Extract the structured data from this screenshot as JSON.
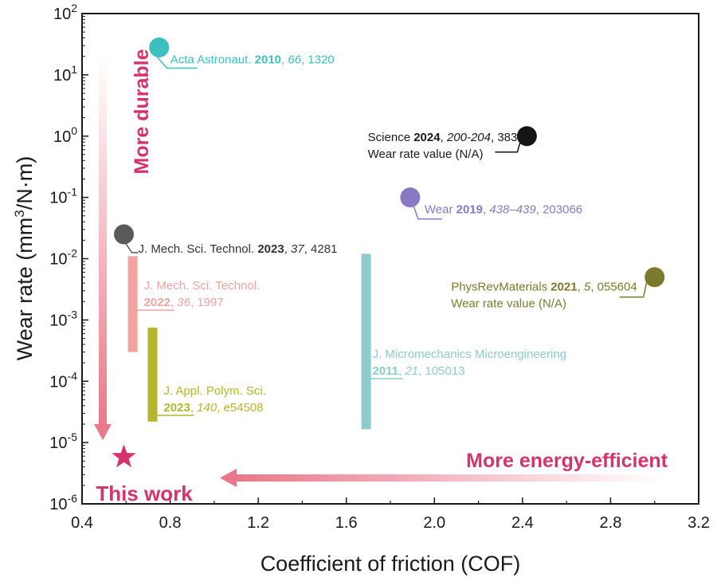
{
  "chart_data": {
    "type": "scatter",
    "xlabel": "Coefficient of friction (COF)",
    "ylabel_prefix": "Wear rate (mm",
    "ylabel_sup": "3",
    "ylabel_suffix": "/N·m)",
    "xlim": [
      0.4,
      3.2
    ],
    "ylim": [
      1e-06,
      100
    ],
    "yscale": "log",
    "x_ticks": [
      "0.4",
      "0.8",
      "1.2",
      "1.6",
      "2.0",
      "2.4",
      "2.8",
      "3.2"
    ],
    "y_ticks": [
      {
        "base": "10",
        "exp": "2"
      },
      {
        "base": "10",
        "exp": "1"
      },
      {
        "base": "10",
        "exp": "0"
      },
      {
        "base": "10",
        "exp": "-1"
      },
      {
        "base": "10",
        "exp": "-2"
      },
      {
        "base": "10",
        "exp": "-3"
      },
      {
        "base": "10",
        "exp": "-4"
      },
      {
        "base": "10",
        "exp": "-5"
      },
      {
        "base": "10",
        "exp": "-6"
      }
    ],
    "points": [
      {
        "x": 0.75,
        "y": 28,
        "color": "#3bbfbf",
        "label": [
          "Acta Astronaut. ",
          "2010",
          ", ",
          "66",
          ", 1320"
        ]
      },
      {
        "x": 0.59,
        "y": 0.025,
        "color": "#5a5a5a",
        "label": [
          "J. Mech. Sci. Technol. ",
          "2023",
          ", ",
          "37",
          ", 4281"
        ]
      },
      {
        "x": 2.42,
        "y": 1.0,
        "color": "#151515",
        "label": [
          "Science ",
          "2024",
          ", ",
          "200-204",
          ", 383"
        ],
        "note": "Wear rate value (N/A)"
      },
      {
        "x": 1.89,
        "y": 0.1,
        "color": "#8a78c4",
        "label": [
          "Wear ",
          "2019",
          ", ",
          "438–439",
          ", 203066"
        ]
      },
      {
        "x": 3.0,
        "y": 0.005,
        "color": "#7b7a2c",
        "label": [
          "PhysRevMaterials ",
          "2021",
          ", ",
          "5",
          ", 055604"
        ],
        "note": "Wear rate value (N/A)"
      }
    ],
    "ranges": [
      {
        "x": 0.63,
        "ymin": 0.0003,
        "ymax": 0.011,
        "color": "#f0a4a0",
        "label_line1": "J. Mech. Sci. Technol.",
        "label_line2": [
          "2022",
          ", ",
          "36",
          ", 1997"
        ]
      },
      {
        "x": 0.72,
        "ymin": 2.2e-05,
        "ymax": 0.00075,
        "color": "#b5b62c",
        "label_line1": "J. Appl. Polym. Sci.",
        "label_line2": [
          "2023",
          ", ",
          "140",
          ", e54508"
        ]
      },
      {
        "x": 1.69,
        "ymin": 1.65e-05,
        "ymax": 0.012,
        "color": "#8ccccc",
        "label_line1": "J. Micromechanics Microengineering",
        "label_line2": [
          "2011",
          ", ",
          "21",
          ", 105013"
        ]
      }
    ],
    "this_work": {
      "x": 0.59,
      "y": 5.8e-06,
      "color": "#d6336c",
      "label": "This work"
    },
    "annotations": {
      "durable": "More durable",
      "efficient": "More energy-efficient",
      "accent": "#d6336c"
    }
  }
}
